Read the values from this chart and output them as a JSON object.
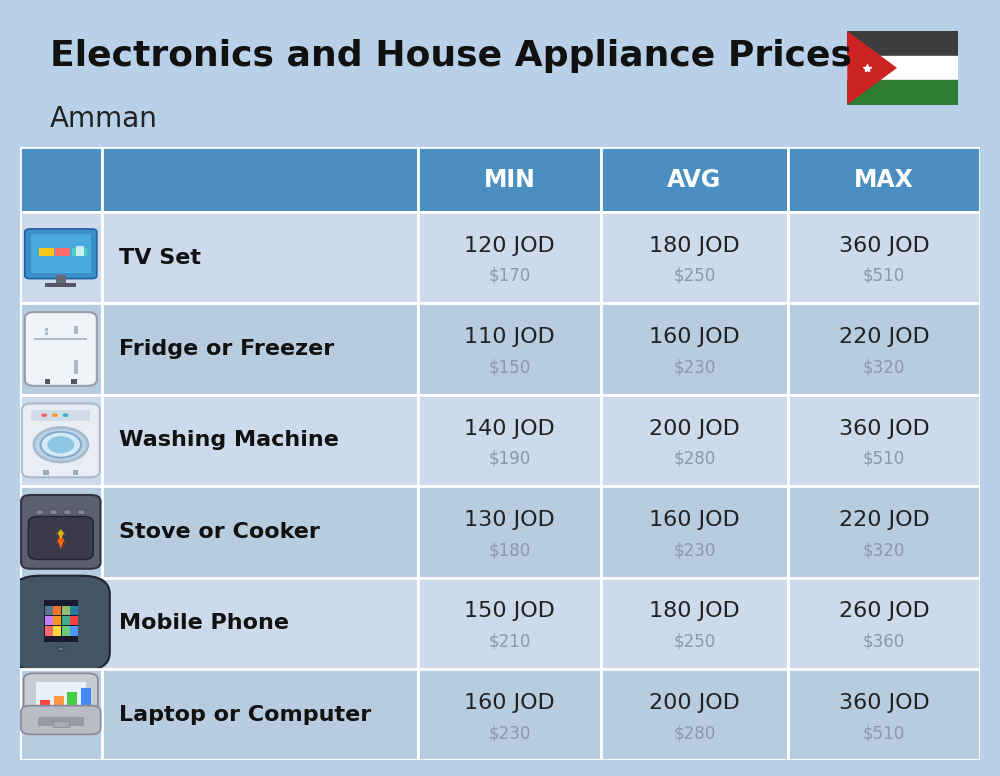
{
  "title_line1": "Electronics and House Appliance Prices",
  "subtitle": "Amman",
  "background_color": "#b8d0e8",
  "header_color": "#4a8fc0",
  "header_text_color": "#ffffff",
  "row_colors": [
    "#ccdaeb",
    "#b8ccdf"
  ],
  "col_headers": [
    "MIN",
    "AVG",
    "MAX"
  ],
  "items": [
    {
      "name": "TV Set",
      "min_jod": "120 JOD",
      "min_usd": "$170",
      "avg_jod": "180 JOD",
      "avg_usd": "$250",
      "max_jod": "360 JOD",
      "max_usd": "$510"
    },
    {
      "name": "Fridge or Freezer",
      "min_jod": "110 JOD",
      "min_usd": "$150",
      "avg_jod": "160 JOD",
      "avg_usd": "$230",
      "max_jod": "220 JOD",
      "max_usd": "$320"
    },
    {
      "name": "Washing Machine",
      "min_jod": "140 JOD",
      "min_usd": "$190",
      "avg_jod": "200 JOD",
      "avg_usd": "$280",
      "max_jod": "360 JOD",
      "max_usd": "$510"
    },
    {
      "name": "Stove or Cooker",
      "min_jod": "130 JOD",
      "min_usd": "$180",
      "avg_jod": "160 JOD",
      "avg_usd": "$230",
      "max_jod": "220 JOD",
      "max_usd": "$320"
    },
    {
      "name": "Mobile Phone",
      "min_jod": "150 JOD",
      "min_usd": "$210",
      "avg_jod": "180 JOD",
      "avg_usd": "$250",
      "max_jod": "260 JOD",
      "max_usd": "$360"
    },
    {
      "name": "Laptop or Computer",
      "min_jod": "160 JOD",
      "min_usd": "$230",
      "avg_jod": "200 JOD",
      "avg_usd": "$280",
      "max_jod": "360 JOD",
      "max_usd": "$510"
    }
  ],
  "jod_color": "#222222",
  "usd_color": "#8899aa",
  "item_name_color": "#111111",
  "col_header_fontsize": 17,
  "item_name_fontsize": 16,
  "jod_fontsize": 16,
  "usd_fontsize": 12,
  "title_fontsize": 26,
  "subtitle_fontsize": 20
}
